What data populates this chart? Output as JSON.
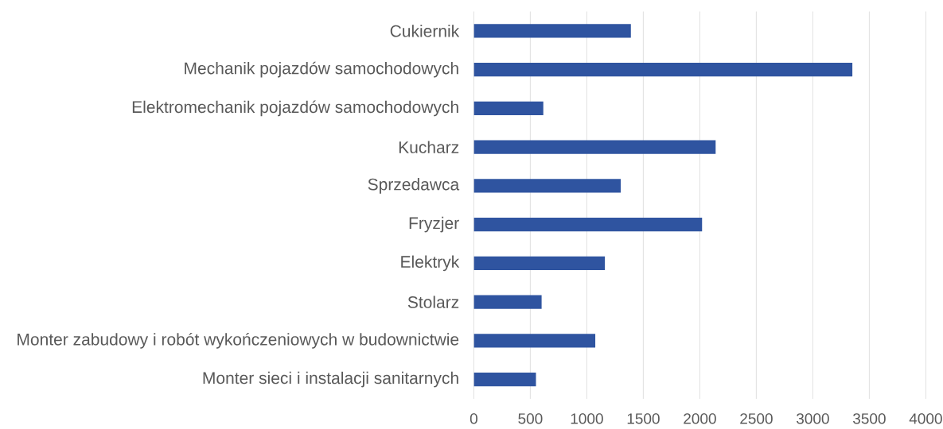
{
  "chart_data": {
    "type": "bar",
    "orientation": "horizontal",
    "categories": [
      "Cukiernik",
      "Mechanik pojazdów samochodowych",
      "Elektromechanik pojazdów samochodowych",
      "Kucharz",
      "Sprzedawca",
      "Fryzjer",
      "Elektryk",
      "Stolarz",
      "Monter zabudowy i robót wykończeniowych w budownictwie",
      "Monter sieci i instalacji sanitarnych"
    ],
    "values": [
      1390,
      3350,
      615,
      2140,
      1300,
      2020,
      1160,
      600,
      1075,
      550
    ],
    "color": "#2f54a0",
    "xlim": [
      0,
      4000
    ],
    "xticks": [
      0,
      500,
      1000,
      1500,
      2000,
      2500,
      3000,
      3500,
      4000
    ],
    "grid": "x"
  }
}
